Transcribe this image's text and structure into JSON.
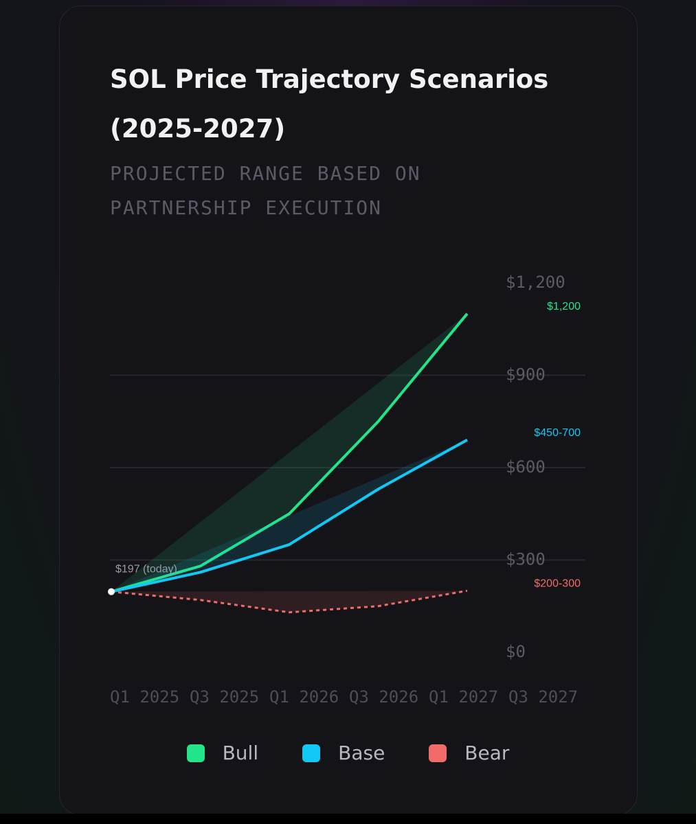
{
  "chart_data": {
    "type": "line",
    "title": "SOL Price Trajectory Scenarios (2025-2027)",
    "subtitle": "PROJECTED RANGE BASED ON PARTNERSHIP EXECUTION",
    "categories": [
      "Q1 2025",
      "Q3 2025",
      "Q1 2026",
      "Q3 2026",
      "Q1 2027",
      "Q3 2027"
    ],
    "series": [
      {
        "name": "Bull",
        "color": "#22e58a",
        "values": [
          197,
          280,
          450,
          750,
          1100,
          null
        ],
        "range_label": "$1,200"
      },
      {
        "name": "Base",
        "color": "#12c8f5",
        "values": [
          197,
          260,
          350,
          530,
          690,
          null
        ],
        "range_label": "$450-700"
      },
      {
        "name": "Bear",
        "color": "#f26b6b",
        "values": [
          197,
          170,
          130,
          150,
          200,
          null
        ],
        "range_label": "$200-300",
        "dashed": true
      }
    ],
    "annotation": "$197 (today)",
    "ylim": [
      0,
      1200
    ],
    "yticks": [
      {
        "value": 0,
        "label": "$0"
      },
      {
        "value": 300,
        "label": "$300"
      },
      {
        "value": 600,
        "label": "$600"
      },
      {
        "value": 900,
        "label": "$900"
      },
      {
        "value": 1200,
        "label": "$1,200"
      }
    ],
    "grid": true
  }
}
